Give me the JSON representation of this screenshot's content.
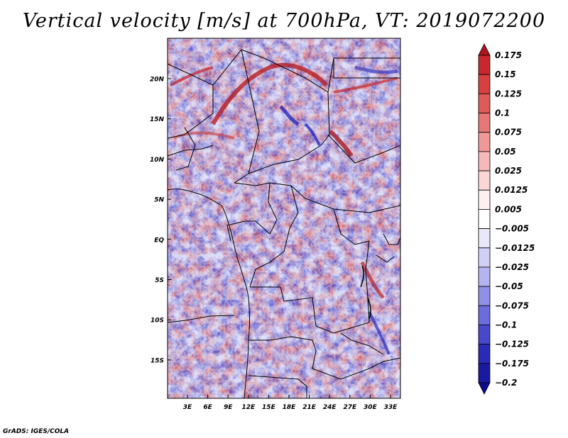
{
  "title": "Vertical velocity [m/s] at 700hPa, VT: 2019072200",
  "credit": "GrADS: IGES/COLA",
  "map": {
    "variable": "Vertical velocity",
    "units": "m/s",
    "level": "700hPa",
    "valid_time": "2019072200",
    "lat_labels": [
      "20N",
      "15N",
      "10N",
      "5N",
      "EQ",
      "5S",
      "10S",
      "15S"
    ],
    "lon_labels": [
      "3E",
      "6E",
      "9E",
      "12E",
      "15E",
      "18E",
      "21E",
      "24E",
      "27E",
      "30E",
      "33E"
    ]
  },
  "colorbar": {
    "labels": [
      "0.175",
      "0.15",
      "0.125",
      "0.1",
      "0.075",
      "0.05",
      "0.025",
      "0.0125",
      "0.005",
      "−0.005",
      "−0.0125",
      "−0.025",
      "−0.05",
      "−0.075",
      "−0.1",
      "−0.125",
      "−0.175",
      "−0.2"
    ],
    "colors": [
      "#b0141c",
      "#c8282c",
      "#d84040",
      "#e05a58",
      "#e87878",
      "#f09898",
      "#f6b8b8",
      "#fad6d6",
      "#fdf0f0",
      "#ffffff",
      "#e8e8fa",
      "#d0d0f6",
      "#b4b4f0",
      "#9090e8",
      "#6c6cdc",
      "#4848cc",
      "#2a2ab8",
      "#1a1aa0",
      "#100a8c"
    ]
  }
}
